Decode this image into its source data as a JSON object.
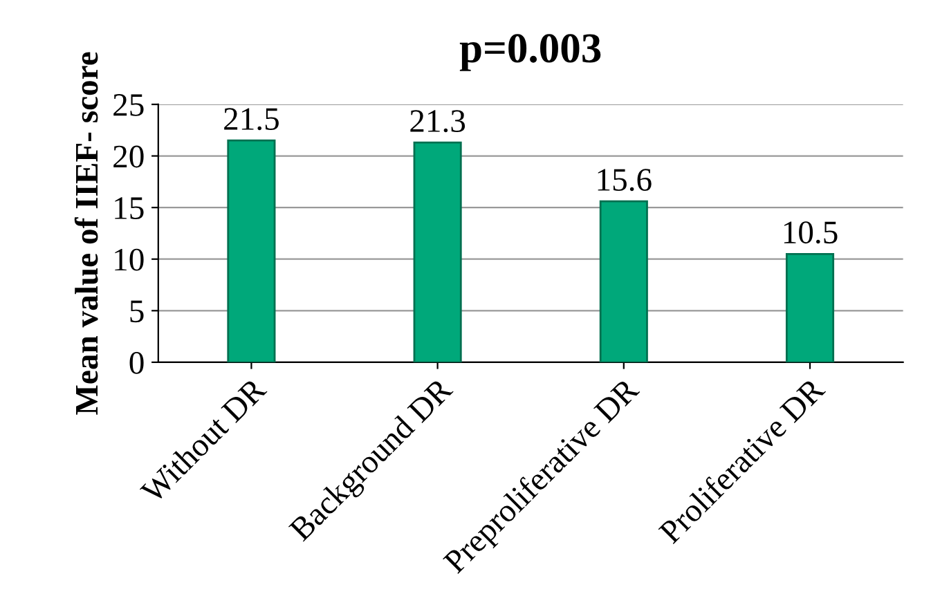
{
  "chart_data": {
    "type": "bar",
    "title": "p=0.003",
    "ylabel": "Mean value of IIEF- score",
    "categories": [
      "Without DR",
      "Background DR",
      "Preproliferative DR",
      "Proliferative DR"
    ],
    "values": [
      21.5,
      21.3,
      15.6,
      10.5
    ],
    "color": "#00a87a",
    "ylim": [
      0,
      25
    ],
    "yticks": [
      0,
      5,
      10,
      15,
      20,
      25
    ],
    "grid": "y",
    "data_labels": true
  }
}
